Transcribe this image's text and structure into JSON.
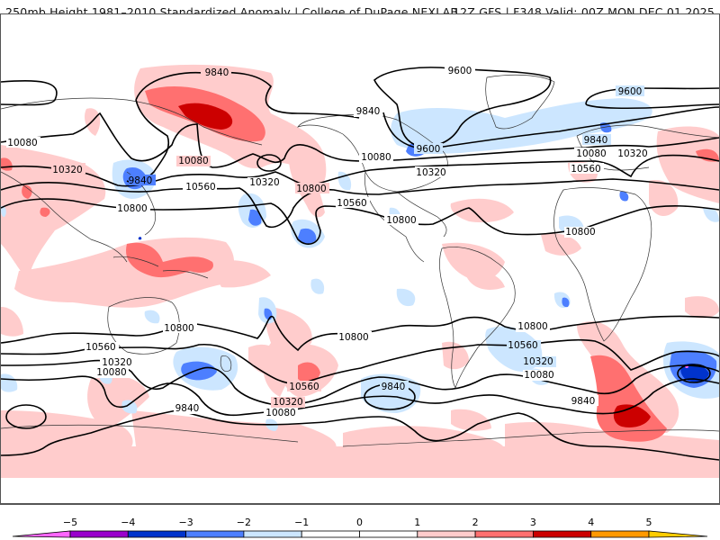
{
  "header": {
    "title_left": "250mb Height 1981–2010 Standardized Anomaly | College of DuPage NEXLAB",
    "title_right": "12Z GFS | F348 Valid: 00Z MON DEC 01 2025"
  },
  "map": {
    "projection": "global-cylindrical",
    "field": "250mb geopotential height (m) contours over standardized anomaly shading",
    "contour_labels": [
      {
        "text": "9840",
        "region": "siberia"
      },
      {
        "text": "9600",
        "region": "arctic-greenland"
      },
      {
        "text": "9600",
        "region": "north-atlantic"
      },
      {
        "text": "10080",
        "region": "west-asia"
      },
      {
        "text": "10320",
        "region": "central-asia"
      },
      {
        "text": "9840",
        "region": "east-asia-trough"
      },
      {
        "text": "10080",
        "region": "bering"
      },
      {
        "text": "10560",
        "region": "north-pacific"
      },
      {
        "text": "10320",
        "region": "north-pacific-east"
      },
      {
        "text": "10800",
        "region": "asia-subtropics"
      },
      {
        "text": "10800",
        "region": "central-pacific"
      },
      {
        "text": "9840",
        "region": "canada"
      },
      {
        "text": "10080",
        "region": "north-america"
      },
      {
        "text": "10320",
        "region": "great-lakes"
      },
      {
        "text": "9600",
        "region": "hudson-bay"
      },
      {
        "text": "10560",
        "region": "west-us"
      },
      {
        "text": "10800",
        "region": "mexico"
      },
      {
        "text": "10560",
        "region": "mid-atlantic"
      },
      {
        "text": "9840",
        "region": "scandinavia"
      },
      {
        "text": "10080",
        "region": "north-europe"
      },
      {
        "text": "10320",
        "region": "europe"
      },
      {
        "text": "10800",
        "region": "sahara"
      },
      {
        "text": "10800",
        "region": "australia"
      },
      {
        "text": "10560",
        "region": "south-indian"
      },
      {
        "text": "10320",
        "region": "south-indian-2"
      },
      {
        "text": "10080",
        "region": "south-indian-3"
      },
      {
        "text": "10560",
        "region": "south-pacific"
      },
      {
        "text": "10320",
        "region": "south-pacific-2"
      },
      {
        "text": "10080",
        "region": "south-pacific-3"
      },
      {
        "text": "9840",
        "region": "southern-ocean"
      },
      {
        "text": "10800",
        "region": "east-south-pacific"
      },
      {
        "text": "10800",
        "region": "south-atlantic"
      },
      {
        "text": "10560",
        "region": "south-atlantic-2"
      },
      {
        "text": "10320",
        "region": "south-atlantic-3"
      },
      {
        "text": "10080",
        "region": "south-atlantic-4"
      },
      {
        "text": "9840",
        "region": "south-pacific-trough"
      },
      {
        "text": "9840",
        "region": "weddell"
      }
    ]
  },
  "colorbar": {
    "ticks": [
      "−5",
      "−4",
      "−3",
      "−2",
      "−1",
      "0",
      "1",
      "2",
      "3",
      "4",
      "5"
    ],
    "bins": [
      {
        "range": "<-5",
        "color": "#ff66ff"
      },
      {
        "range": "-5 to -4",
        "color": "#9900cc"
      },
      {
        "range": "-4 to -3",
        "color": "#0033cc"
      },
      {
        "range": "-3 to -2",
        "color": "#4d7fff"
      },
      {
        "range": "-2 to -1",
        "color": "#cce6ff"
      },
      {
        "range": "-1 to 0",
        "color": "#ffffff"
      },
      {
        "range": "0 to 1",
        "color": "#ffffff"
      },
      {
        "range": "1 to 2",
        "color": "#ffcccc"
      },
      {
        "range": "2 to 3",
        "color": "#ff7070"
      },
      {
        "range": "3 to 4",
        "color": "#cc0000"
      },
      {
        "range": "4 to 5",
        "color": "#ff9900"
      },
      {
        "range": ">5",
        "color": "#ffcc00"
      }
    ]
  }
}
